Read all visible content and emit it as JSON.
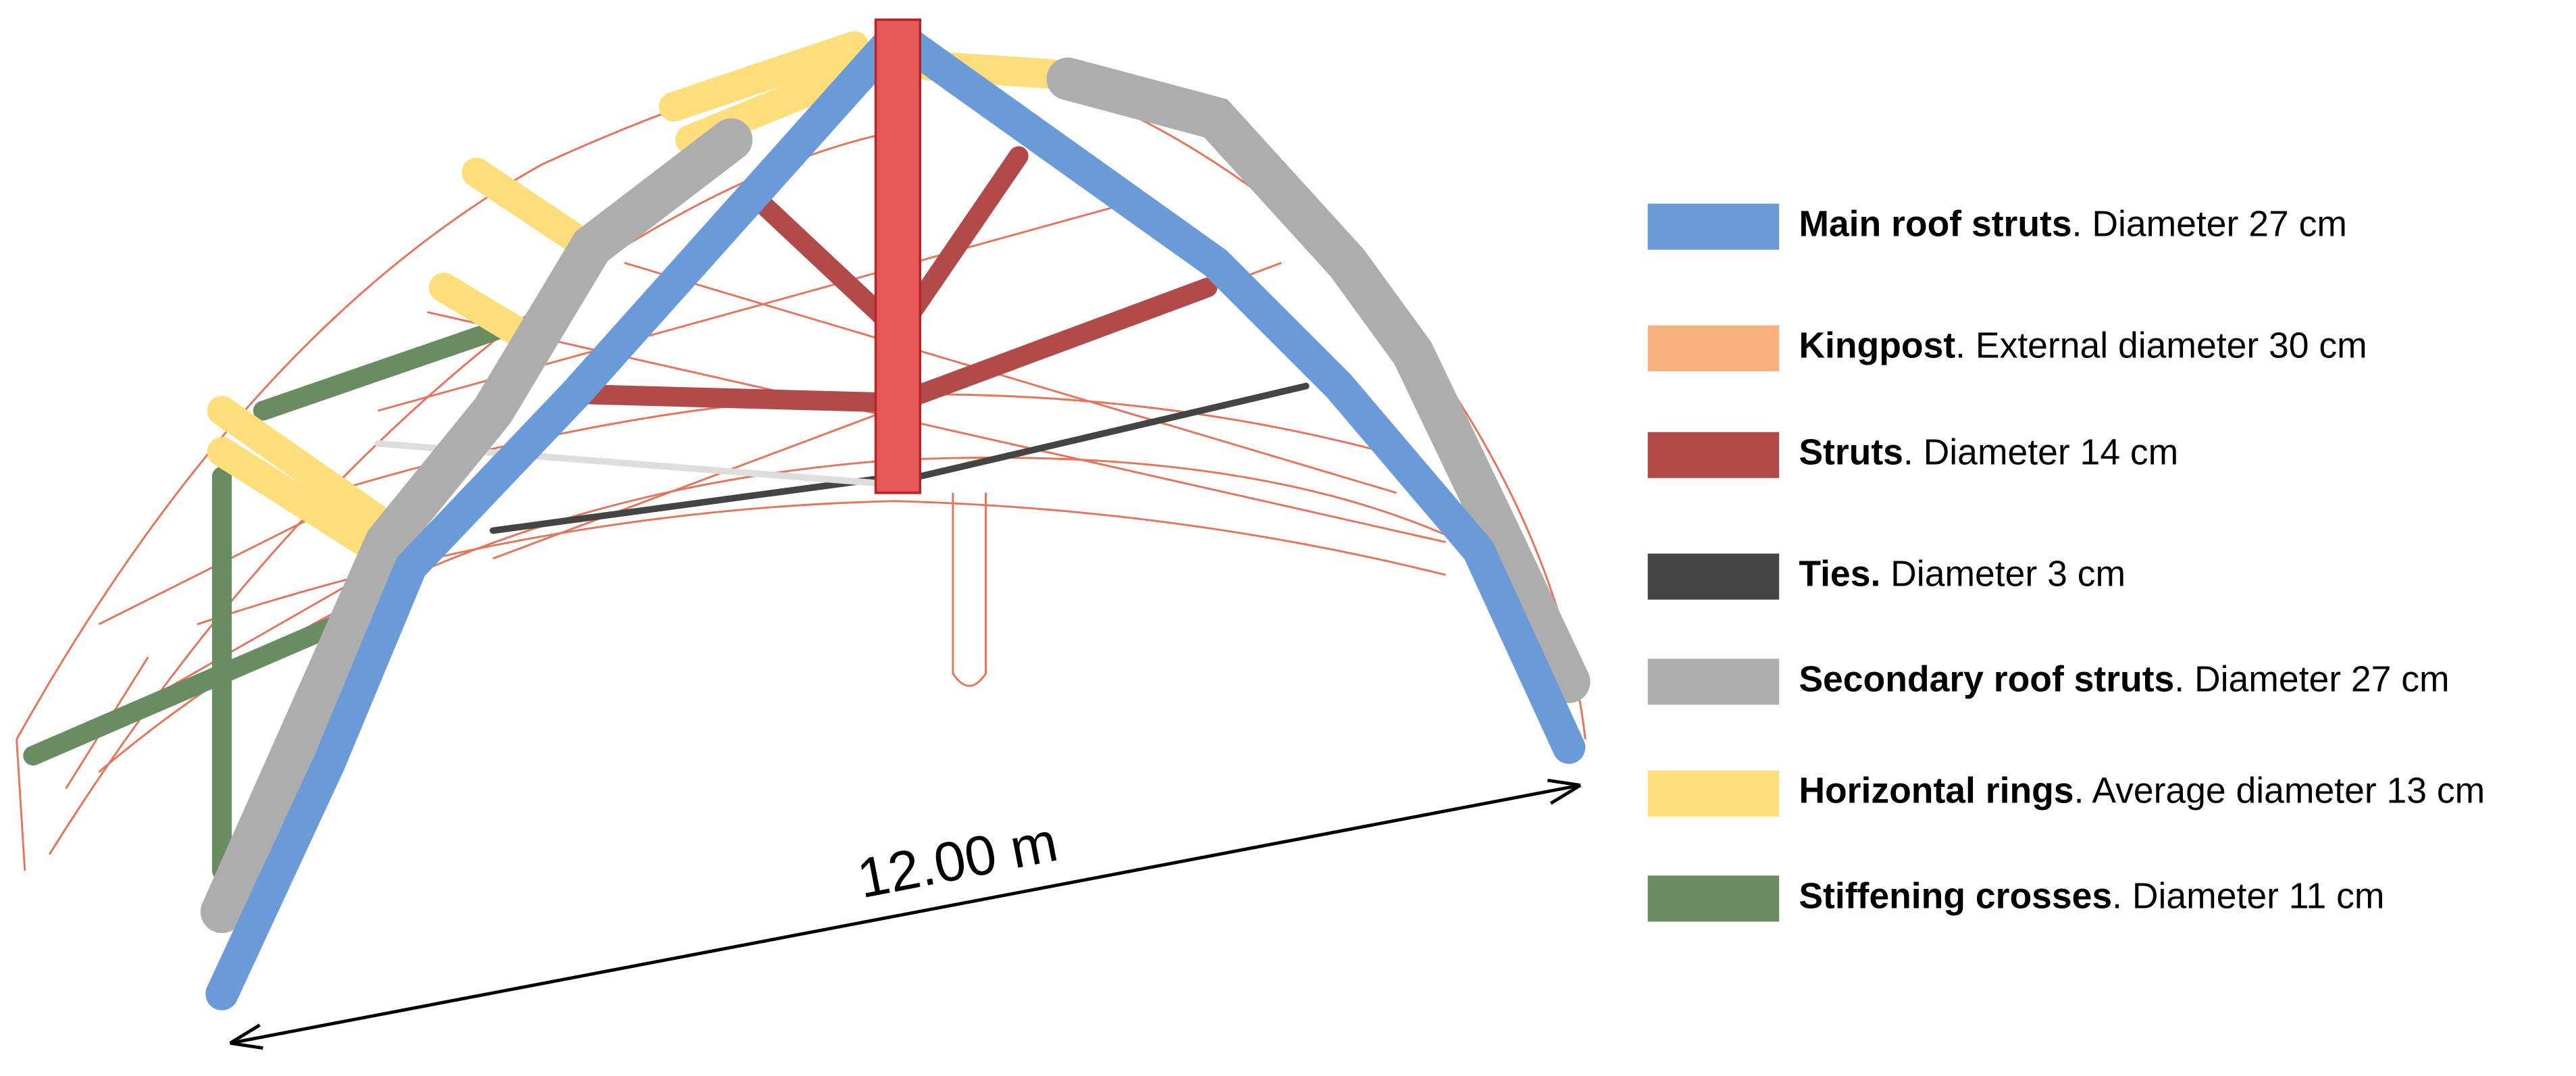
{
  "dimension_label": "12.00 m",
  "legend": {
    "items": [
      {
        "name": "Main roof struts",
        "text": ". Diameter 27 cm",
        "color": "#6a9ad8"
      },
      {
        "name": "Kingpost",
        "text": ". External diameter 30 cm",
        "color": "#fbb17f"
      },
      {
        "name": "Struts",
        "text": ". Diameter 14 cm",
        "color": "#b24a4a"
      },
      {
        "name": "Ties.",
        "text": " Diameter 3 cm",
        "color": "#444444"
      },
      {
        "name": "Secondary roof struts",
        "text": ". Diameter 27 cm",
        "color": "#adadad"
      },
      {
        "name": "Horizontal rings",
        "text": ". Average diameter 13 cm",
        "color": "#fdde7a"
      },
      {
        "name": "Stiffening crosses",
        "text": ". Diameter 11 cm",
        "color": "#6a8c62"
      }
    ]
  }
}
